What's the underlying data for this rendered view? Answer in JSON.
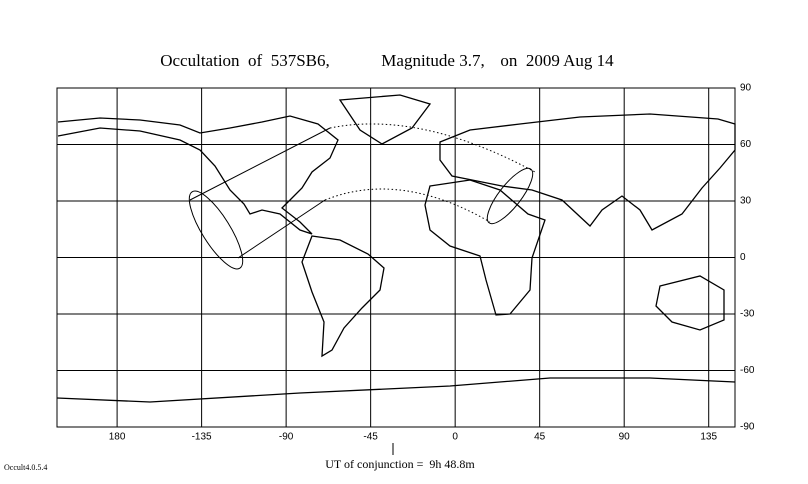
{
  "header": {
    "title_parts": [
      "Occultation  of  537SB6,",
      "Magnitude 3.7,",
      "on  2009 Aug 14"
    ]
  },
  "map": {
    "xlim": [
      -212,
      149
    ],
    "ylim": [
      -90,
      90
    ],
    "xticks": [
      {
        "value": -180,
        "label": "180"
      },
      -135,
      -90,
      -45,
      0,
      45,
      90,
      135
    ],
    "yticks": [
      90,
      60,
      30,
      0,
      -30,
      -60,
      -90
    ]
  },
  "footer": {
    "conjunction": "UT of conjunction =  9h 48.8m",
    "version": "Occult4.0.5.4"
  }
}
